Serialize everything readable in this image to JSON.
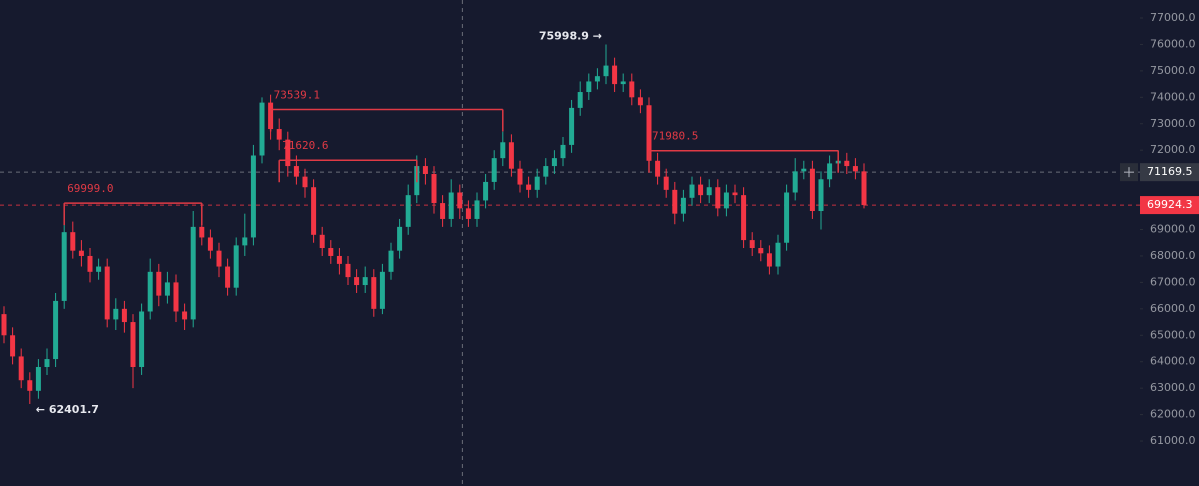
{
  "chart_data": {
    "type": "candlestick",
    "open": [
      65800,
      65000,
      64200,
      63300,
      62900,
      63800,
      64100,
      66300,
      68900,
      68200,
      68000,
      67400,
      67600,
      65600,
      66000,
      65500,
      63800,
      65900,
      67400,
      66500,
      67000,
      65900,
      65600,
      69100,
      68700,
      68200,
      67600,
      66800,
      68400,
      68700,
      71800,
      73800,
      72800,
      72400,
      71400,
      71000,
      70600,
      68800,
      68300,
      68000,
      67700,
      67200,
      66900,
      67200,
      66000,
      67400,
      68200,
      69100,
      70300,
      71400,
      71100,
      70000,
      69400,
      70400,
      69800,
      69400,
      70100,
      70800,
      71700,
      72300,
      71300,
      70700,
      70500,
      71000,
      71400,
      71700,
      72200,
      73600,
      74200,
      74600,
      74800,
      75200,
      74500,
      74600,
      74000,
      73700,
      71600,
      71000,
      70500,
      69600,
      70200,
      70700,
      70300,
      70600,
      69800,
      70400,
      70300,
      68600,
      68300,
      68100,
      67600,
      68500,
      70400,
      71200,
      71300,
      69700,
      70900,
      71500,
      71600,
      71400,
      71200
    ],
    "high": [
      66100,
      65300,
      64500,
      63600,
      64100,
      64500,
      66600,
      69700,
      69300,
      68600,
      68300,
      67900,
      67900,
      66400,
      66300,
      65800,
      66200,
      67900,
      67700,
      67400,
      67300,
      66200,
      69700,
      69400,
      69000,
      68500,
      67900,
      68700,
      69600,
      72200,
      74000,
      74100,
      73200,
      72700,
      71800,
      71300,
      70900,
      69100,
      68600,
      68300,
      68000,
      67500,
      67600,
      67500,
      67700,
      68500,
      69400,
      70700,
      71800,
      71700,
      71400,
      70300,
      70900,
      70700,
      70100,
      70400,
      71100,
      72000,
      72700,
      72600,
      71600,
      71000,
      71300,
      71700,
      72000,
      72500,
      73900,
      74600,
      74900,
      75100,
      75998.9,
      75500,
      74900,
      74900,
      74300,
      74000,
      71900,
      71300,
      70800,
      70500,
      71000,
      71000,
      70900,
      70900,
      70700,
      70700,
      70600,
      68900,
      68600,
      68400,
      68800,
      70700,
      71700,
      71600,
      71600,
      71200,
      71800,
      72000,
      71900,
      71700,
      71500
    ],
    "low": [
      64700,
      63900,
      63000,
      62401.7,
      62600,
      63500,
      63800,
      66000,
      67900,
      67600,
      67000,
      67100,
      65300,
      65200,
      65100,
      63000,
      63500,
      65600,
      66100,
      66200,
      65500,
      65200,
      65300,
      68400,
      67900,
      67200,
      66500,
      66500,
      68000,
      68400,
      71500,
      72400,
      72000,
      71000,
      70700,
      70200,
      68500,
      68000,
      67700,
      67300,
      66900,
      66600,
      66600,
      65700,
      65800,
      67100,
      67900,
      68800,
      70000,
      70700,
      69600,
      69100,
      69100,
      69400,
      69100,
      69100,
      69800,
      70500,
      71400,
      71000,
      70400,
      70200,
      70200,
      70700,
      71100,
      71400,
      71900,
      73300,
      73900,
      74300,
      74500,
      74200,
      74200,
      73700,
      73400,
      71300,
      70700,
      70200,
      69200,
      69300,
      69900,
      70000,
      70000,
      69500,
      69500,
      70000,
      68300,
      68000,
      67800,
      67300,
      67300,
      68200,
      70100,
      70900,
      69400,
      69000,
      70600,
      71200,
      71100,
      70900,
      69800
    ],
    "close": [
      65000,
      64200,
      63300,
      62900,
      63800,
      64100,
      66300,
      68900,
      68200,
      68000,
      67400,
      67600,
      65600,
      66000,
      65500,
      63800,
      65900,
      67400,
      66500,
      67000,
      65900,
      65600,
      69100,
      68700,
      68200,
      67600,
      66800,
      68400,
      68700,
      71800,
      73800,
      72800,
      72400,
      71400,
      71000,
      70600,
      68800,
      68300,
      68000,
      67700,
      67200,
      66900,
      67200,
      66000,
      67400,
      68200,
      69100,
      70300,
      71400,
      71100,
      70000,
      69400,
      70400,
      69800,
      69400,
      70100,
      70800,
      71700,
      72300,
      71300,
      70700,
      70500,
      71000,
      71400,
      71700,
      72200,
      73600,
      74200,
      74600,
      74800,
      75200,
      74500,
      74600,
      74000,
      73700,
      71600,
      71000,
      70500,
      69600,
      70200,
      70700,
      70300,
      70600,
      69800,
      70400,
      70300,
      68600,
      68300,
      68100,
      67600,
      68500,
      70400,
      71200,
      71300,
      69700,
      70900,
      71500,
      71600,
      71400,
      71200,
      69924.3
    ],
    "up_color": "#22ab94",
    "down_color": "#f23645",
    "ylim": [
      60000,
      77600
    ],
    "yticks": [
      {
        "value": 61000,
        "label": "61000.0"
      },
      {
        "value": 62000,
        "label": "62000.0"
      },
      {
        "value": 63000,
        "label": "63000.0"
      },
      {
        "value": 64000,
        "label": "64000.0"
      },
      {
        "value": 65000,
        "label": "65000.0"
      },
      {
        "value": 66000,
        "label": "66000.0"
      },
      {
        "value": 67000,
        "label": "67000.0"
      },
      {
        "value": 68000,
        "label": "68000.0"
      },
      {
        "value": 69000,
        "label": "69000.0"
      },
      {
        "value": 70000,
        "label": "70000.0"
      },
      {
        "value": 71000,
        "label": "71000.0"
      },
      {
        "value": 72000,
        "label": "72000.0"
      },
      {
        "value": 73000,
        "label": "73000.0"
      },
      {
        "value": 74000,
        "label": "74000.0"
      },
      {
        "value": 75000,
        "label": "75000.0"
      },
      {
        "value": 76000,
        "label": "76000.0"
      },
      {
        "value": 77000,
        "label": "77000.0"
      }
    ],
    "levels": [
      {
        "value": 69999.0,
        "label": "69999.0",
        "start": 7,
        "end": 23
      },
      {
        "value": 73539.1,
        "label": "73539.1",
        "start": 31,
        "end": 58
      },
      {
        "value": 71620.6,
        "label": "71620.6",
        "start": 32,
        "end": 48
      },
      {
        "value": 71980.5,
        "label": "71980.5",
        "start": 75,
        "end": 97
      }
    ],
    "extremes": [
      {
        "value": 75998.9,
        "label": "75998.9 →",
        "index": 70,
        "side": "left"
      },
      {
        "value": 62401.7,
        "label": "← 62401.7",
        "index": 3,
        "side": "right"
      }
    ],
    "crosshair": {
      "value": 71169.5,
      "label": "71169.5",
      "index": 53.3
    },
    "last_price": {
      "value": 69924.3,
      "label": "69924.3"
    }
  }
}
